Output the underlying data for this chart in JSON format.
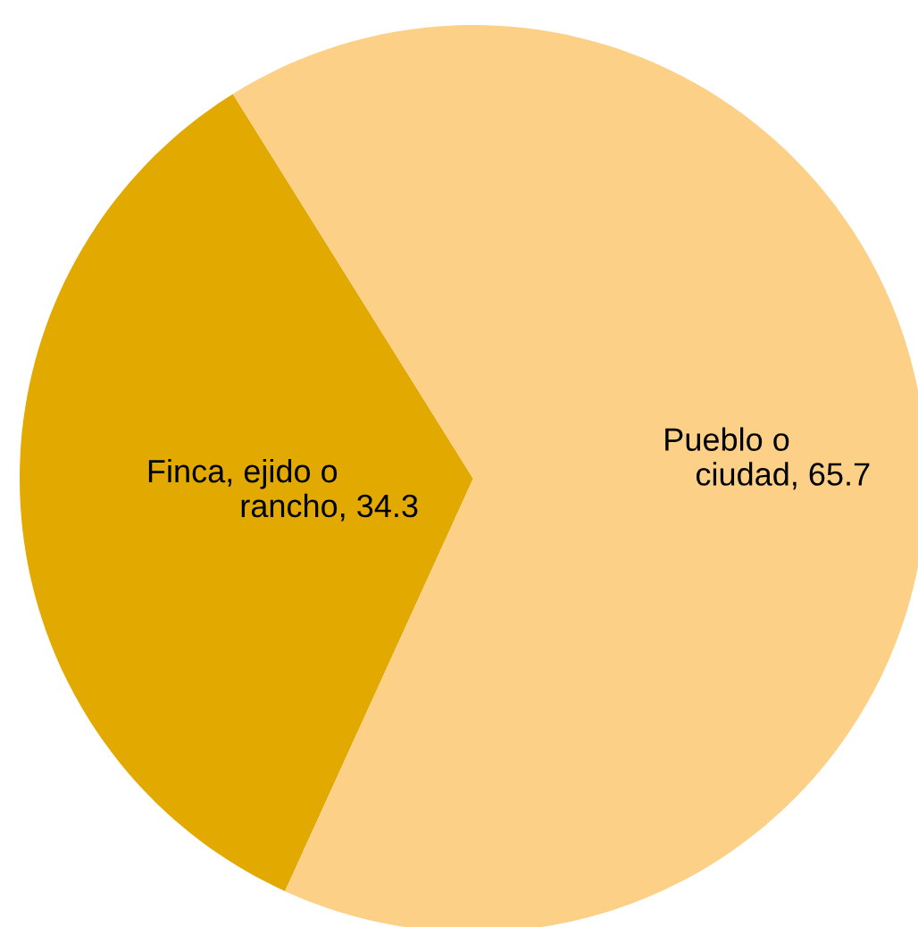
{
  "chart_data": {
    "type": "pie",
    "categories": [
      "Finca, ejido o\nrancho",
      "Pueblo o\nciudad"
    ],
    "values": [
      34.3,
      65.7
    ],
    "colors": [
      "#e2a900",
      "#fdd087"
    ],
    "value_labels": [
      ", 34.3",
      ", 65.7"
    ]
  }
}
